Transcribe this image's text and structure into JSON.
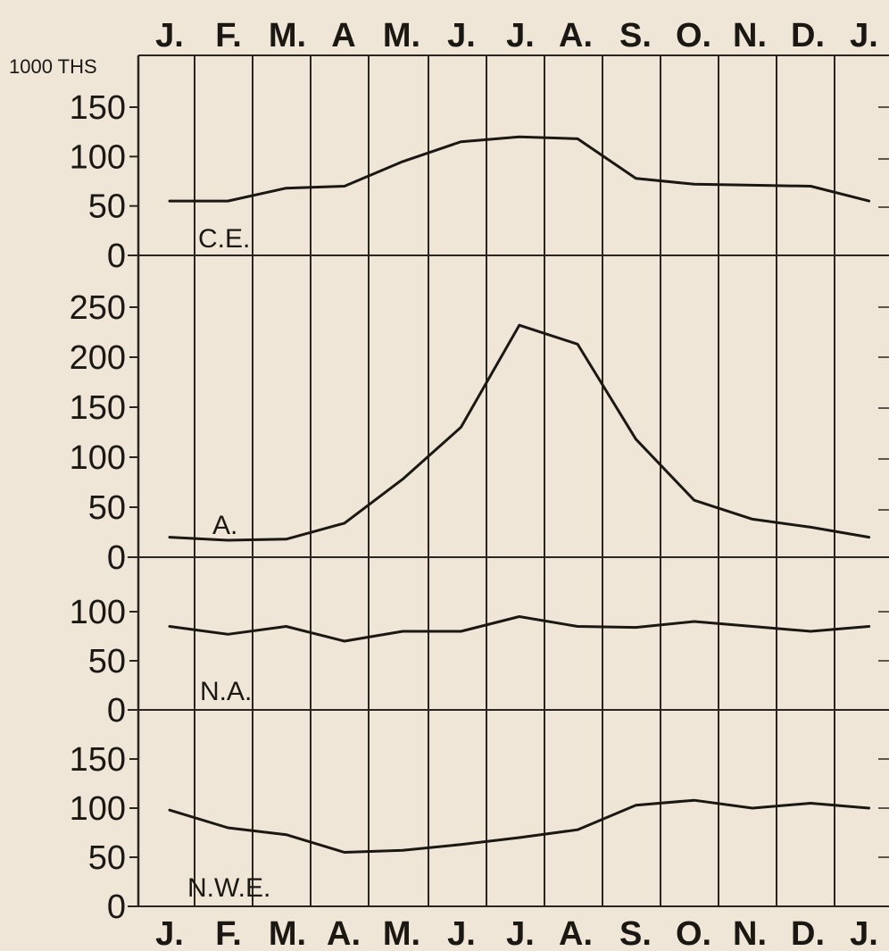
{
  "colors": {
    "paper": "#efe6d8",
    "ink": "#1b1813",
    "grid": "#2a261f"
  },
  "chart_data": {
    "type": "line",
    "unit_label": "1000 THS",
    "months_top": [
      "J.",
      "F.",
      "M.",
      "A",
      "M.",
      "J.",
      "J.",
      "A.",
      "S.",
      "O.",
      "N.",
      "D.",
      "J."
    ],
    "months_bottom": [
      "J.",
      "F.",
      "M.",
      "A.",
      "M.",
      "J.",
      "J.",
      "A.",
      "S.",
      "O.",
      "N.",
      "D.",
      "J."
    ],
    "x": [
      0,
      1,
      2,
      3,
      4,
      5,
      6,
      7,
      8,
      9,
      10,
      11,
      12
    ],
    "grid": true,
    "panels": [
      {
        "series_label": "C.E.",
        "ylim": [
          0,
          150
        ],
        "ticks": [
          0,
          50,
          100,
          150
        ],
        "tick_labels": [
          "0",
          "50",
          "100",
          "150"
        ],
        "values": [
          55,
          55,
          68,
          70,
          95,
          115,
          120,
          118,
          78,
          72,
          71,
          70,
          55
        ]
      },
      {
        "series_label": "A.",
        "ylim": [
          0,
          250
        ],
        "ticks": [
          0,
          50,
          100,
          150,
          200,
          250
        ],
        "tick_labels": [
          "0",
          "50",
          "100",
          "150",
          "200",
          "250"
        ],
        "values": [
          20,
          17,
          18,
          34,
          78,
          130,
          232,
          213,
          118,
          57,
          38,
          30,
          20
        ]
      },
      {
        "series_label": "N.A.",
        "ylim": [
          0,
          100
        ],
        "ticks": [
          0,
          50,
          100
        ],
        "tick_labels": [
          "0",
          "50",
          "100"
        ],
        "values": [
          85,
          77,
          85,
          70,
          80,
          80,
          95,
          85,
          84,
          90,
          85,
          80,
          85
        ]
      },
      {
        "series_label": "N.W.E.",
        "ylim": [
          0,
          150
        ],
        "ticks": [
          0,
          50,
          100,
          150
        ],
        "tick_labels": [
          "0",
          "50",
          "100",
          "150"
        ],
        "values": [
          98,
          80,
          73,
          55,
          57,
          63,
          70,
          78,
          103,
          108,
          100,
          105,
          100
        ]
      }
    ]
  }
}
